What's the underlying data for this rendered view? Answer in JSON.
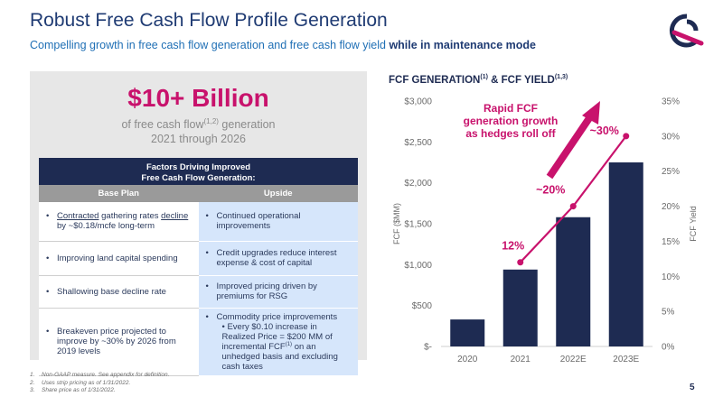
{
  "header": {
    "title": "Robust Free Cash Flow Profile Generation",
    "subtitle": "Compelling growth in free cash flow generation and free cash flow yield",
    "subtitle_bold": "while in maintenance mode"
  },
  "highlight": {
    "value": "$10+ Billion",
    "desc_prefix": "of free cash flow",
    "desc_sup": "(1,2)",
    "desc_suffix": " generation",
    "desc_line2": "2021 through 2026"
  },
  "factors_table": {
    "title_line1": "Factors Driving Improved",
    "title_line2": "Free Cash Flow Generation:",
    "col_base": "Base Plan",
    "col_upside": "Upside",
    "row1": {
      "base_w1": "Contracted",
      "base_w2": " gathering rates ",
      "base_w3": "decline",
      "base_w4": " by ~$0.18/mcfe long-term",
      "upside": "Continued operational improvements"
    },
    "row2": {
      "base": "Improving land capital spending",
      "upside": "Credit upgrades reduce interest expense & cost of capital"
    },
    "row3": {
      "base": "Shallowing base decline rate",
      "upside": "Improved pricing driven by premiums for RSG"
    },
    "row4": {
      "base": "Breakeven price projected to improve by ~30% by 2026 from 2019 levels",
      "upside": "Commodity price improvements",
      "upside_sub_a": "Every $0.10 increase in Realized Price = $200 MM of incremental FCF",
      "upside_sub_sup": "(1)",
      "upside_sub_b": " on an unhedged basis and excluding cash taxes"
    }
  },
  "chart_title": {
    "text": "FCF GENERATION",
    "sup1": "(1)",
    "mid": " & FCF YIELD",
    "sup2": "(1,3)"
  },
  "chart_data": {
    "type": "bar",
    "categories": [
      "2020",
      "2021",
      "2022E",
      "2023E"
    ],
    "series": [
      {
        "name": "FCF ($MM)",
        "values": [
          330,
          940,
          1580,
          2250
        ]
      },
      {
        "name": "FCF Yield",
        "values": [
          null,
          12,
          20,
          30
        ]
      }
    ],
    "ylabel": "FCF ($MM)",
    "y2label": "FCF Yield",
    "ylim": [
      0,
      3000
    ],
    "y2lim": [
      0,
      35
    ],
    "y_ticks": [
      "$-",
      "$500",
      "$1,000",
      "$1,500",
      "$2,000",
      "$2,500",
      "$3,000"
    ],
    "y2_ticks": [
      "0%",
      "5%",
      "10%",
      "15%",
      "20%",
      "25%",
      "30%",
      "35%"
    ],
    "yield_labels": [
      "12%",
      "~20%",
      "~30%"
    ],
    "annotation_lines": [
      "Rapid FCF",
      "generation growth",
      "as hedges roll off"
    ],
    "colors": {
      "bar": "#1e2b52",
      "line": "#c8126c",
      "axis_text": "#6a6a6a"
    }
  },
  "footnotes": [
    {
      "n": "1.",
      "text": "Non-GAAP measure. See appendix for definition."
    },
    {
      "n": "2.",
      "text": "Uses strip pricing as of 1/31/2022."
    },
    {
      "n": "3.",
      "text": "Share price as of 1/31/2022."
    }
  ],
  "page_number": "5"
}
